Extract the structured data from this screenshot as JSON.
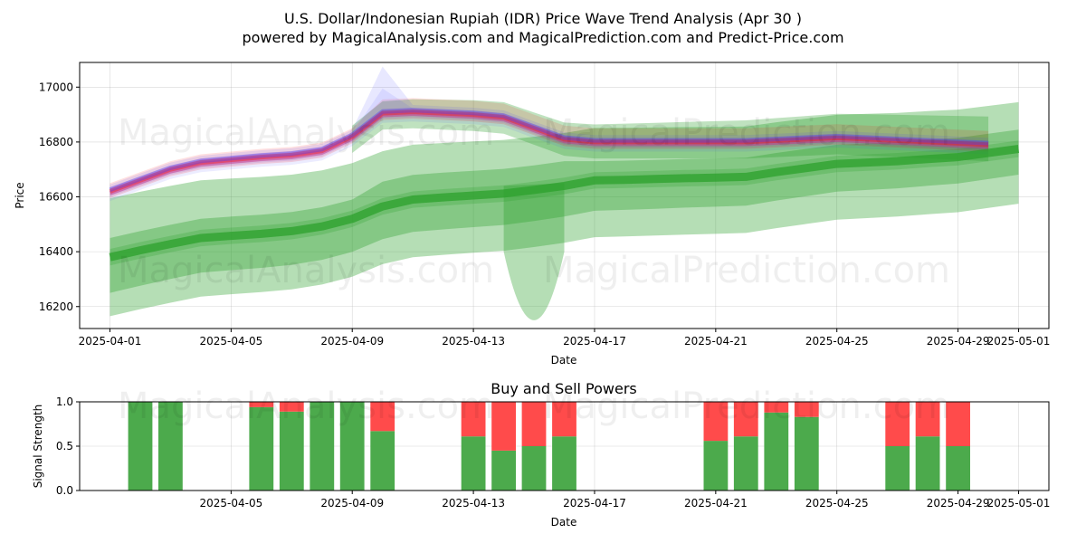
{
  "figure": {
    "title_line1": "U.S. Dollar/Indonesian Rupiah (IDR) Price Wave Trend Analysis (Apr 30 )",
    "title_line2": "powered by MagicalAnalysis.com and MagicalPrediction.com and Predict-Price.com",
    "watermarks": [
      "MagicalAnalysis.com",
      "MagicalPrediction.com"
    ]
  },
  "colors": {
    "bullish_green": "#2ca02c",
    "bearish_red": "#ff0000",
    "wave_blue": "#4040ff",
    "wave_purple": "#c040a0",
    "buy_bar": "#4caa4c",
    "sell_bar": "#ff4b4b",
    "grid": "#b0b0b0"
  },
  "chart_data": [
    {
      "type": "area",
      "title": "",
      "xlabel": "Date",
      "ylabel": "Price",
      "xlim": [
        "2025-03-31",
        "2025-05-02"
      ],
      "ylim": [
        16120,
        17090
      ],
      "x_ticks": [
        "2025-04-01",
        "2025-04-05",
        "2025-04-09",
        "2025-04-13",
        "2025-04-17",
        "2025-04-21",
        "2025-04-25",
        "2025-04-29",
        "2025-05-01"
      ],
      "y_ticks": [
        16200,
        16400,
        16600,
        16800,
        17000
      ],
      "grid": true,
      "series": [
        {
          "x": [
            "2025-04-01",
            "2025-04-02",
            "2025-04-03",
            "2025-04-04",
            "2025-04-05",
            "2025-04-06",
            "2025-04-07",
            "2025-04-08",
            "2025-04-09",
            "2025-04-10",
            "2025-04-11",
            "2025-04-12",
            "2025-04-13",
            "2025-04-14",
            "2025-04-15",
            "2025-04-16",
            "2025-04-17",
            "2025-04-18",
            "2025-04-19",
            "2025-04-20",
            "2025-04-21",
            "2025-04-22",
            "2025-04-23",
            "2025-04-24",
            "2025-04-25",
            "2025-04-26",
            "2025-04-27",
            "2025-04-28",
            "2025-04-29",
            "2025-04-30",
            "2025-05-01"
          ],
          "values": [
            16380,
            16405,
            16428,
            16450,
            16458,
            16465,
            16475,
            16492,
            16520,
            16565,
            16590,
            16598,
            16605,
            16612,
            16625,
            16640,
            16660,
            16662,
            16665,
            16668,
            16670,
            16673,
            16690,
            16705,
            16720,
            16725,
            16730,
            16738,
            16745,
            16760,
            16775
          ]
        },
        {
          "x": [
            "2025-04-01",
            "2025-04-02",
            "2025-04-03",
            "2025-04-04",
            "2025-04-05",
            "2025-04-06",
            "2025-04-07",
            "2025-04-08",
            "2025-04-09",
            "2025-04-10",
            "2025-04-11",
            "2025-04-12",
            "2025-04-13",
            "2025-04-14",
            "2025-04-15",
            "2025-04-16",
            "2025-04-17",
            "2025-04-18",
            "2025-04-19",
            "2025-04-20",
            "2025-04-21",
            "2025-04-22",
            "2025-04-23",
            "2025-04-24",
            "2025-04-25",
            "2025-04-26",
            "2025-04-27",
            "2025-04-28",
            "2025-04-29",
            "2025-04-30"
          ],
          "values": [
            16620,
            16660,
            16700,
            16725,
            16735,
            16745,
            16752,
            16768,
            16820,
            16905,
            16910,
            16905,
            16900,
            16890,
            16850,
            16810,
            16800,
            16800,
            16800,
            16800,
            16800,
            16800,
            16805,
            16810,
            16815,
            16810,
            16805,
            16800,
            16795,
            16790
          ]
        }
      ]
    },
    {
      "type": "bar",
      "title": "Buy and Sell Powers",
      "xlabel": "Date",
      "ylabel": "Signal Strength",
      "xlim": [
        "2025-03-31",
        "2025-05-02"
      ],
      "ylim": [
        0,
        1
      ],
      "x_ticks": [
        "2025-04-05",
        "2025-04-09",
        "2025-04-13",
        "2025-04-17",
        "2025-04-21",
        "2025-04-25",
        "2025-04-29",
        "2025-05-01"
      ],
      "y_ticks": [
        "0.0",
        "0.5",
        "1.0"
      ],
      "grid": true,
      "categories": [
        "2025-04-02",
        "2025-04-03",
        "2025-04-06",
        "2025-04-07",
        "2025-04-08",
        "2025-04-09",
        "2025-04-10",
        "2025-04-13",
        "2025-04-14",
        "2025-04-15",
        "2025-04-16",
        "2025-04-21",
        "2025-04-22",
        "2025-04-23",
        "2025-04-24",
        "2025-04-27",
        "2025-04-28",
        "2025-04-29"
      ],
      "series": [
        {
          "name": "Buy",
          "values": [
            1.0,
            1.0,
            0.94,
            0.89,
            1.0,
            1.0,
            0.67,
            0.61,
            0.45,
            0.5,
            0.61,
            0.56,
            0.61,
            0.88,
            0.83,
            0.5,
            0.61,
            0.5
          ]
        },
        {
          "name": "Sell",
          "values": [
            0.0,
            0.0,
            0.06,
            0.11,
            0.0,
            0.0,
            0.33,
            0.39,
            0.55,
            0.5,
            0.39,
            0.44,
            0.39,
            0.12,
            0.17,
            0.5,
            0.39,
            0.5
          ]
        }
      ]
    }
  ]
}
